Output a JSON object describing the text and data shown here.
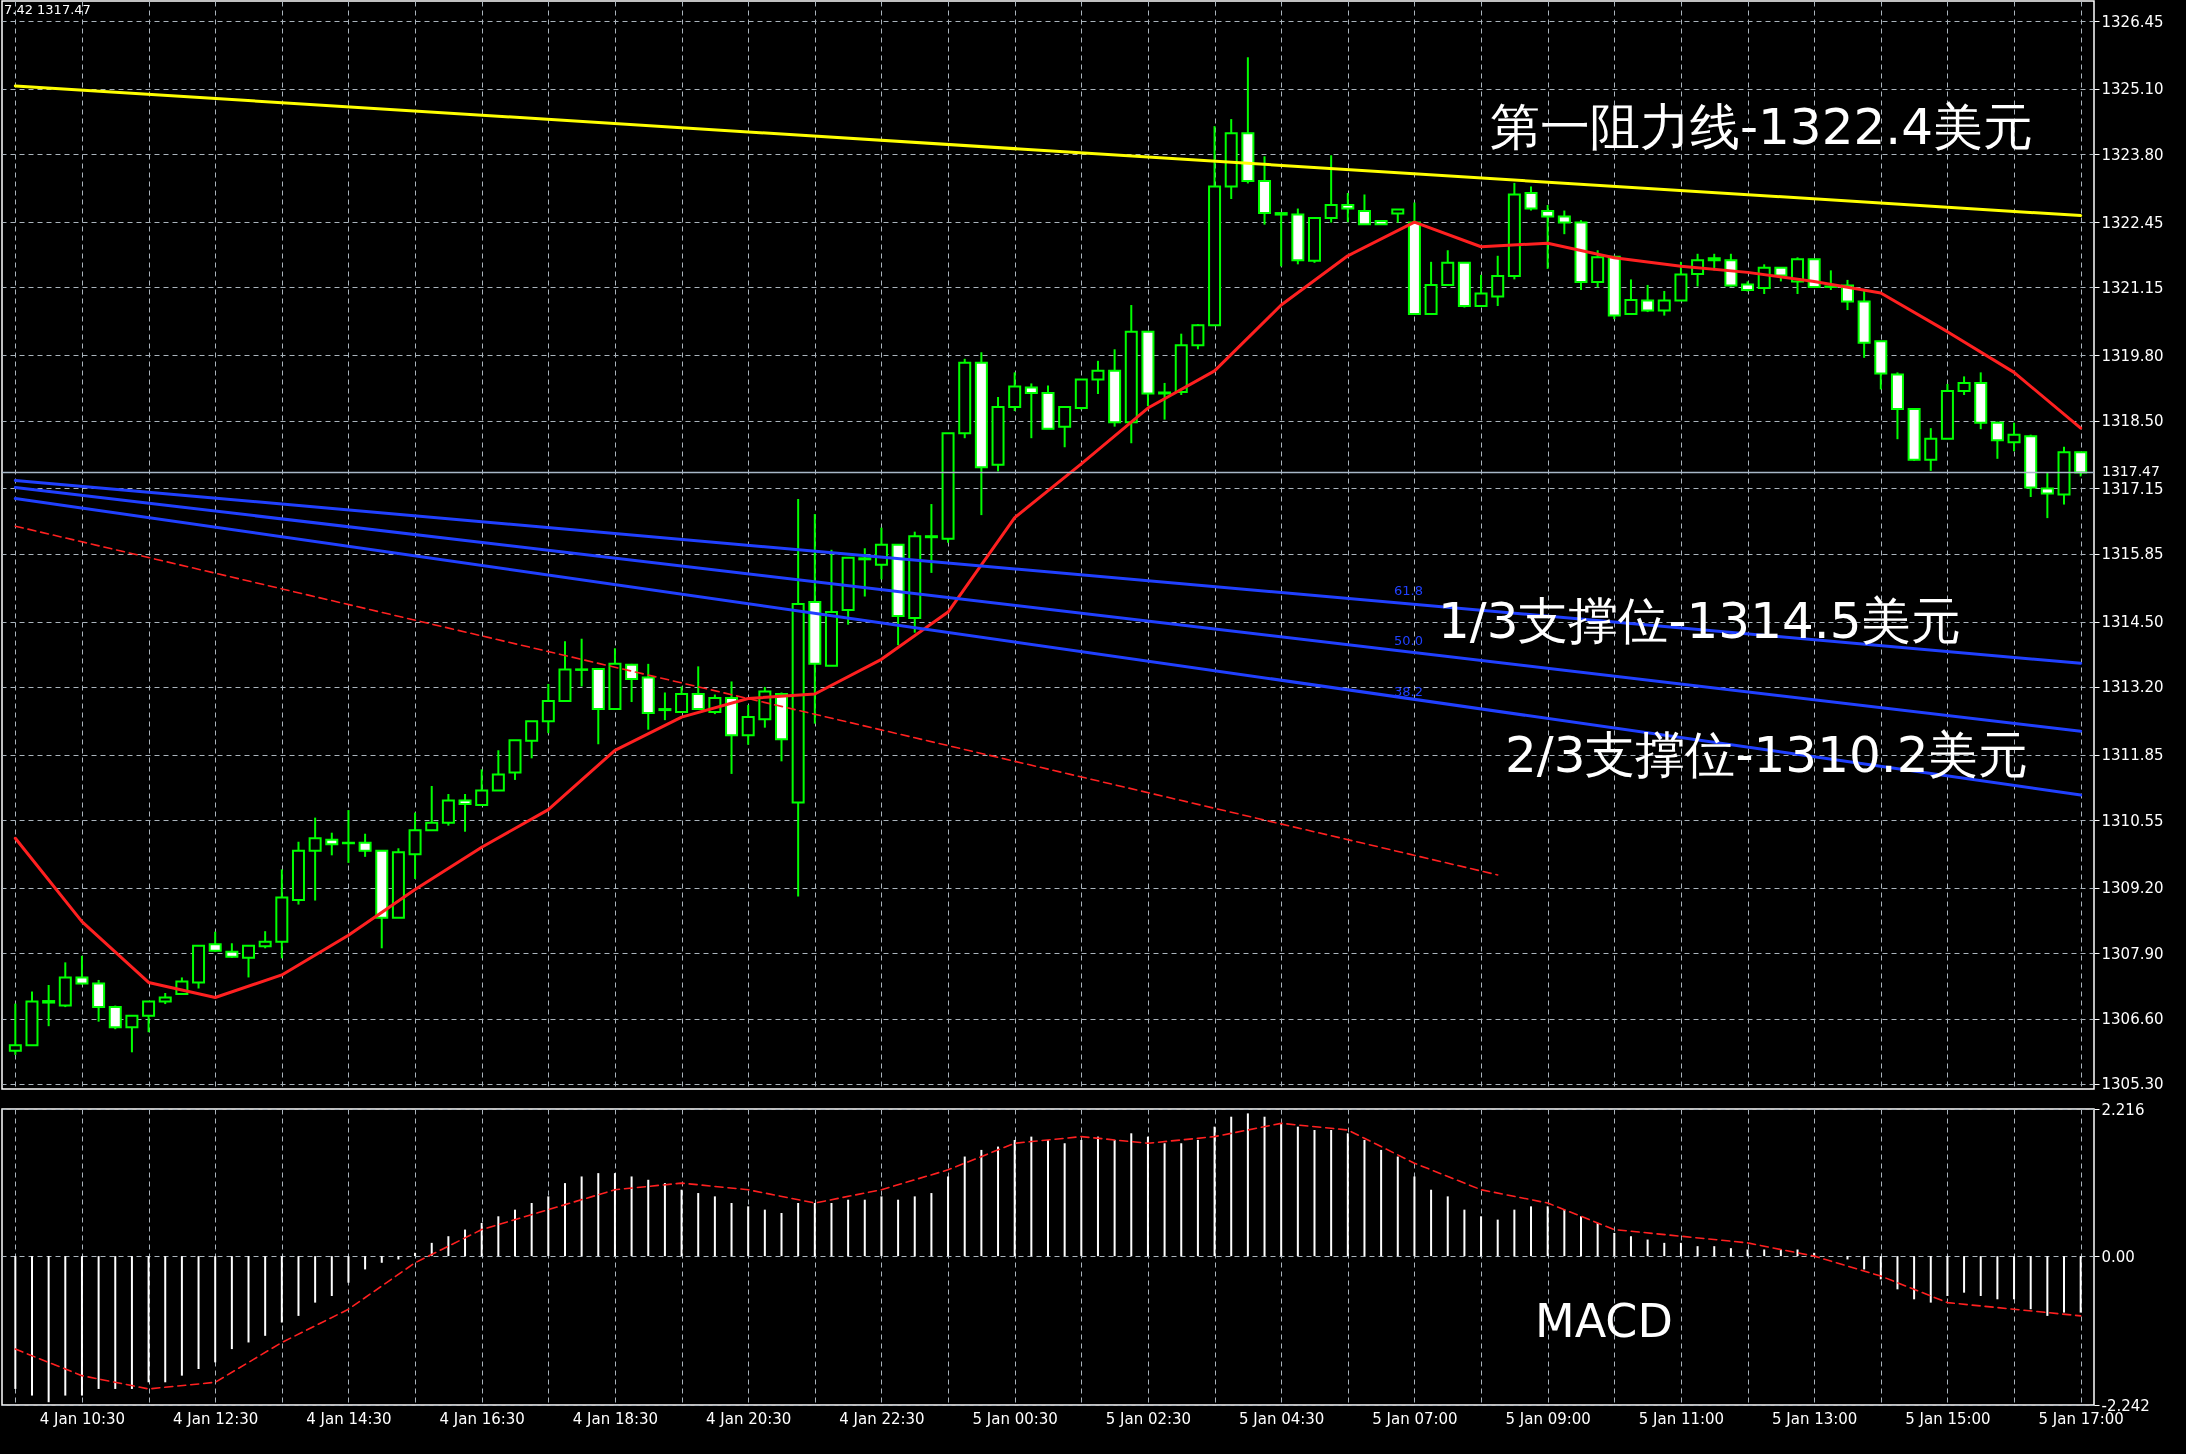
{
  "chart_data": [
    {
      "type": "candlestick",
      "color": "#00ff00",
      "grid": true,
      "tick_labels": "y",
      "categories": [
        null,
        null,
        null,
        null,
        null,
        null,
        null,
        null,
        null,
        null,
        null,
        null,
        null,
        null,
        null,
        null,
        null,
        null,
        null,
        null,
        null,
        null,
        null,
        null,
        null,
        null,
        null,
        null,
        null,
        null,
        null,
        null,
        null,
        null,
        null,
        null,
        null,
        null,
        null,
        null,
        null,
        null,
        null,
        null,
        null,
        null,
        null,
        null,
        null,
        null,
        null,
        null,
        null,
        null,
        null,
        null,
        null,
        null,
        null,
        null,
        null,
        null,
        null,
        null,
        null,
        null,
        null,
        null,
        null,
        null,
        null,
        null,
        null,
        null,
        null,
        null,
        null,
        null,
        null,
        null,
        null,
        null,
        null,
        null,
        null,
        null,
        null,
        null,
        null,
        null,
        null,
        null,
        null,
        null,
        null,
        null,
        null,
        null,
        null,
        null,
        null,
        null,
        null,
        null,
        null,
        null,
        null,
        null,
        null,
        null,
        null,
        null,
        null,
        null,
        null,
        null,
        null,
        null,
        null,
        null,
        null,
        null,
        null,
        null,
        null
      ],
      "ylim": [
        1305.2,
        1326.85
      ],
      "yticks": [
        {
          "value": 1305.3,
          "label": "1305.30"
        },
        {
          "value": 1306.6,
          "label": "1306.60"
        },
        {
          "value": 1307.9,
          "label": "1307.90"
        },
        {
          "value": 1309.2,
          "label": "1309.20"
        },
        1310.55,
        1311.85,
        {
          "value": 1313.2,
          "label": "1313.20"
        },
        {
          "value": 1314.5,
          "label": "1314.50"
        },
        1315.85,
        1317.15,
        {
          "value": 1318.5,
          "label": "1318.50"
        },
        {
          "value": 1319.8,
          "label": "1319.80"
        },
        1321.15,
        1322.45,
        {
          "value": 1323.8,
          "label": "1323.80"
        },
        {
          "value": 1325.1,
          "label": "1325.10"
        },
        1326.45
      ],
      "ohlc": [
        [
          1305.96,
          1306.9,
          1305.88,
          1306.07
        ],
        [
          1306.07,
          1307.14,
          1306.07,
          1306.94
        ],
        [
          1306.92,
          1307.27,
          1306.45,
          1306.95
        ],
        [
          1306.86,
          1307.72,
          1306.83,
          1307.42
        ],
        [
          1307.42,
          1307.85,
          1307.28,
          1307.3
        ],
        [
          1307.3,
          1307.37,
          1306.54,
          1306.83
        ],
        [
          1306.83,
          1306.86,
          1306.39,
          1306.43
        ],
        [
          1306.43,
          1306.66,
          1305.93,
          1306.66
        ],
        [
          1306.66,
          1306.94,
          1306.33,
          1306.94
        ],
        [
          1306.94,
          1307.11,
          1306.89,
          1307.02
        ],
        [
          1307.09,
          1307.42,
          1307.09,
          1307.34
        ],
        [
          1307.32,
          1308.05,
          1307.2,
          1308.05
        ],
        [
          1308.08,
          1308.33,
          1307.93,
          1307.95
        ],
        [
          1307.93,
          1308.1,
          1307.81,
          1307.83
        ],
        [
          1307.81,
          1308.05,
          1307.42,
          1308.05
        ],
        [
          1308.04,
          1308.34,
          1308.0,
          1308.13
        ],
        [
          1308.13,
          1309.57,
          1307.8,
          1309.01
        ],
        [
          1308.96,
          1310.12,
          1308.87,
          1309.94
        ],
        [
          1309.94,
          1310.6,
          1308.95,
          1310.19
        ],
        [
          1310.16,
          1310.3,
          1309.85,
          1310.07
        ],
        [
          1310.09,
          1310.75,
          1309.7,
          1310.1
        ],
        [
          1310.1,
          1310.28,
          1309.82,
          1309.94
        ],
        [
          1309.94,
          1309.94,
          1308.0,
          1308.61
        ],
        [
          1308.61,
          1309.99,
          1308.61,
          1309.91
        ],
        [
          1309.87,
          1310.7,
          1309.38,
          1310.35
        ],
        [
          1310.35,
          1311.23,
          1310.35,
          1310.5
        ],
        [
          1310.5,
          1311.07,
          1310.44,
          1310.94
        ],
        [
          1310.94,
          1311.07,
          1310.32,
          1310.87
        ],
        [
          1310.85,
          1311.56,
          1310.85,
          1311.14
        ],
        [
          1311.14,
          1311.94,
          1311.14,
          1311.46
        ],
        [
          1311.5,
          1312.14,
          1311.35,
          1312.14
        ],
        [
          1312.13,
          1312.52,
          1311.78,
          1312.52
        ],
        [
          1312.52,
          1313.26,
          1312.28,
          1312.92
        ],
        [
          1312.92,
          1314.11,
          1312.92,
          1313.55
        ],
        [
          1313.55,
          1314.16,
          1313.21,
          1313.54
        ],
        [
          1313.56,
          1313.56,
          1312.06,
          1312.76
        ],
        [
          1312.76,
          1313.97,
          1312.76,
          1313.66
        ],
        [
          1313.64,
          1313.66,
          1312.9,
          1313.36
        ],
        [
          1313.39,
          1313.66,
          1312.35,
          1312.68
        ],
        [
          1312.74,
          1313.09,
          1312.54,
          1312.76
        ],
        [
          1312.7,
          1313.21,
          1312.7,
          1313.06
        ],
        [
          1313.06,
          1313.61,
          1312.76,
          1312.76
        ],
        [
          1312.7,
          1313.05,
          1312.66,
          1312.98
        ],
        [
          1312.98,
          1313.31,
          1311.47,
          1312.24
        ],
        [
          1312.24,
          1312.84,
          1312.05,
          1312.6
        ],
        [
          1312.56,
          1313.2,
          1312.39,
          1313.11
        ],
        [
          1313.06,
          1313.09,
          1311.72,
          1312.16
        ],
        [
          1310.9,
          1316.94,
          1309.03,
          1314.85
        ],
        [
          1314.89,
          1316.64,
          1312.47,
          1313.66
        ],
        [
          1313.62,
          1315.93,
          1313.62,
          1314.69
        ],
        [
          1314.73,
          1315.77,
          1314.44,
          1315.77
        ],
        [
          1315.74,
          1315.96,
          1315.0,
          1315.76
        ],
        [
          1315.63,
          1316.37,
          1315.34,
          1316.03
        ],
        [
          1316.03,
          1316.03,
          1314.03,
          1314.61
        ],
        [
          1314.57,
          1316.29,
          1314.28,
          1316.2
        ],
        [
          1316.18,
          1316.84,
          1315.47,
          1316.2
        ],
        [
          1316.15,
          1318.25,
          1316.07,
          1318.25
        ],
        [
          1318.25,
          1319.73,
          1318.15,
          1319.65
        ],
        [
          1319.65,
          1319.86,
          1316.62,
          1317.57
        ],
        [
          1317.62,
          1318.97,
          1317.49,
          1318.77
        ],
        [
          1318.77,
          1319.46,
          1318.69,
          1319.18
        ],
        [
          1319.16,
          1319.24,
          1318.15,
          1319.05
        ],
        [
          1319.05,
          1319.2,
          1318.34,
          1318.34
        ],
        [
          1318.38,
          1318.77,
          1317.97,
          1318.77
        ],
        [
          1318.75,
          1319.32,
          1318.72,
          1319.32
        ],
        [
          1319.32,
          1319.69,
          1319.03,
          1319.49
        ],
        [
          1319.49,
          1319.92,
          1318.38,
          1318.47
        ],
        [
          1318.47,
          1320.8,
          1318.05,
          1320.27
        ],
        [
          1320.27,
          1320.27,
          1318.79,
          1319.04
        ],
        [
          1319.04,
          1319.25,
          1318.52,
          1319.06
        ],
        [
          1319.07,
          1320.23,
          1319.01,
          1320.0
        ],
        [
          1320.0,
          1320.42,
          1319.92,
          1320.4
        ],
        [
          1320.4,
          1324.36,
          1320.4,
          1323.16
        ],
        [
          1323.16,
          1324.5,
          1322.91,
          1324.22
        ],
        [
          1324.22,
          1325.73,
          1323.22,
          1323.27
        ],
        [
          1323.27,
          1323.76,
          1322.4,
          1322.63
        ],
        [
          1322.63,
          1322.63,
          1321.57,
          1322.6
        ],
        [
          1322.6,
          1322.72,
          1321.61,
          1321.69
        ],
        [
          1321.68,
          1322.53,
          1321.64,
          1322.53
        ],
        [
          1322.53,
          1323.78,
          1322.44,
          1322.79
        ],
        [
          1322.79,
          1323.03,
          1322.45,
          1322.72
        ],
        [
          1322.67,
          1323.0,
          1322.4,
          1322.41
        ],
        [
          1322.47,
          1322.49,
          1322.4,
          1322.41
        ],
        [
          1322.62,
          1322.7,
          1322.44,
          1322.7
        ],
        [
          1322.44,
          1322.84,
          1320.62,
          1320.62
        ],
        [
          1320.62,
          1321.66,
          1320.62,
          1321.2
        ],
        [
          1321.2,
          1321.89,
          1321.2,
          1321.64
        ],
        [
          1321.64,
          1321.64,
          1320.75,
          1320.78
        ],
        [
          1320.78,
          1321.4,
          1320.78,
          1321.03
        ],
        [
          1320.97,
          1321.78,
          1320.78,
          1321.38
        ],
        [
          1321.38,
          1323.23,
          1321.31,
          1323.0
        ],
        [
          1323.03,
          1323.16,
          1322.68,
          1322.72
        ],
        [
          1322.67,
          1322.79,
          1321.52,
          1322.56
        ],
        [
          1322.56,
          1322.68,
          1322.21,
          1322.44
        ],
        [
          1322.44,
          1322.49,
          1321.1,
          1321.26
        ],
        [
          1321.26,
          1321.89,
          1321.15,
          1321.75
        ],
        [
          1321.76,
          1321.78,
          1320.52,
          1320.59
        ],
        [
          1320.62,
          1321.31,
          1320.62,
          1320.9
        ],
        [
          1320.89,
          1321.2,
          1320.66,
          1320.69
        ],
        [
          1320.69,
          1321.08,
          1320.59,
          1320.89
        ],
        [
          1320.89,
          1321.66,
          1320.89,
          1321.41
        ],
        [
          1321.42,
          1321.82,
          1321.17,
          1321.69
        ],
        [
          1321.69,
          1321.82,
          1321.49,
          1321.73
        ],
        [
          1321.69,
          1321.82,
          1321.17,
          1321.19
        ],
        [
          1321.21,
          1321.27,
          1321.07,
          1321.1
        ],
        [
          1321.14,
          1321.61,
          1321.02,
          1321.54
        ],
        [
          1321.54,
          1321.54,
          1321.27,
          1321.39
        ],
        [
          1321.27,
          1321.75,
          1321.02,
          1321.71
        ],
        [
          1321.71,
          1321.71,
          1321.14,
          1321.16
        ],
        [
          1321.16,
          1321.49,
          1321.1,
          1321.17
        ],
        [
          1321.19,
          1321.3,
          1320.7,
          1320.87
        ],
        [
          1320.87,
          1321.08,
          1319.75,
          1320.05
        ],
        [
          1320.08,
          1320.08,
          1319.12,
          1319.44
        ],
        [
          1319.42,
          1319.46,
          1318.13,
          1318.73
        ],
        [
          1318.73,
          1318.73,
          1317.7,
          1317.72
        ],
        [
          1317.72,
          1318.35,
          1317.5,
          1318.14
        ],
        [
          1318.14,
          1319.23,
          1318.14,
          1319.09
        ],
        [
          1319.09,
          1319.38,
          1319.01,
          1319.25
        ],
        [
          1319.25,
          1319.46,
          1318.33,
          1318.46
        ],
        [
          1318.46,
          1318.48,
          1317.74,
          1318.11
        ],
        [
          1318.07,
          1318.46,
          1317.89,
          1318.22
        ],
        [
          1318.19,
          1318.22,
          1316.98,
          1317.17
        ],
        [
          1317.15,
          1317.46,
          1316.56,
          1317.05
        ],
        [
          1317.03,
          1317.98,
          1316.83,
          1317.87
        ],
        [
          1317.87,
          1317.87,
          1317.39,
          1317.47
        ]
      ],
      "series": [
        {
          "type": "line",
          "color": "#ff2020",
          "values": [
            1310.19,
            null,
            null,
            null,
            1308.53,
            null,
            null,
            null,
            1307.32,
            null,
            null,
            null,
            1307.02,
            null,
            null,
            null,
            1307.47,
            null,
            null,
            null,
            1308.26,
            null,
            null,
            null,
            1309.17,
            null,
            null,
            null,
            1310.01,
            null,
            null,
            null,
            1310.76,
            null,
            null,
            null,
            1311.94,
            null,
            null,
            null,
            1312.6,
            null,
            null,
            null,
            1312.97,
            null,
            null,
            null,
            1313.06,
            null,
            null,
            null,
            1313.75,
            null,
            null,
            null,
            1314.69,
            null,
            null,
            null,
            1316.57,
            null,
            null,
            null,
            1317.64,
            null,
            null,
            null,
            1318.75,
            null,
            null,
            null,
            1319.49,
            null,
            null,
            null,
            1320.8,
            null,
            null,
            null,
            1321.78,
            null,
            null,
            null,
            1322.45,
            null,
            null,
            null,
            1321.96,
            null,
            null,
            null,
            1322.03,
            null,
            null,
            null,
            1321.74,
            null,
            null,
            null,
            1321.57,
            null,
            null,
            null,
            1321.45,
            null,
            null,
            null,
            1321.27,
            null,
            null,
            null,
            1321.04,
            null,
            null,
            null,
            1320.27,
            null,
            null,
            null,
            1319.46,
            null,
            null,
            null,
            1318.35
          ]
        },
        {
          "type": "line",
          "color": "#ffff00",
          "values": [
            1325.16,
            null,
            null,
            null,
            null,
            null,
            null,
            null,
            null,
            null,
            null,
            null,
            null,
            null,
            null,
            null,
            null,
            null,
            null,
            null,
            null,
            null,
            null,
            null,
            null,
            null,
            null,
            null,
            null,
            null,
            null,
            null,
            null,
            null,
            null,
            null,
            null,
            null,
            null,
            null,
            null,
            null,
            null,
            null,
            null,
            null,
            null,
            null,
            null,
            null,
            null,
            null,
            null,
            null,
            null,
            null,
            null,
            null,
            null,
            null,
            null,
            null,
            null,
            null,
            null,
            null,
            null,
            null,
            null,
            null,
            null,
            null,
            null,
            null,
            null,
            null,
            null,
            null,
            null,
            null,
            null,
            null,
            null,
            null,
            null,
            null,
            null,
            null,
            null,
            null,
            null,
            null,
            null,
            null,
            null,
            null,
            null,
            null,
            null,
            null,
            null,
            null,
            null,
            null,
            null,
            null,
            null,
            null,
            null,
            null,
            null,
            null,
            null,
            null,
            null,
            null,
            null,
            null,
            null,
            null,
            null,
            null,
            null,
            null,
            1322.58
          ]
        },
        {
          "type": "line",
          "name": "61.8",
          "color": "#2040ff",
          "values": [
            1317.31,
            null,
            null,
            null,
            null,
            null,
            null,
            null,
            null,
            null,
            null,
            null,
            null,
            null,
            null,
            null,
            null,
            null,
            null,
            null,
            null,
            null,
            null,
            null,
            null,
            null,
            null,
            null,
            null,
            null,
            null,
            null,
            null,
            null,
            null,
            null,
            null,
            null,
            null,
            null,
            null,
            null,
            null,
            null,
            null,
            null,
            null,
            null,
            null,
            null,
            null,
            null,
            null,
            null,
            null,
            null,
            null,
            null,
            null,
            null,
            null,
            null,
            null,
            null,
            null,
            null,
            null,
            null,
            null,
            null,
            null,
            null,
            null,
            null,
            null,
            null,
            null,
            null,
            null,
            null,
            null,
            null,
            null,
            null,
            null,
            null,
            null,
            null,
            null,
            null,
            null,
            null,
            null,
            null,
            null,
            null,
            null,
            null,
            null,
            null,
            null,
            null,
            null,
            null,
            null,
            null,
            null,
            null,
            null,
            null,
            null,
            null,
            null,
            null,
            null,
            null,
            null,
            null,
            null,
            null,
            null,
            null,
            null,
            null,
            1313.67
          ]
        },
        {
          "type": "line",
          "name": "50.0",
          "color": "#2040ff",
          "values": [
            1317.17,
            null,
            null,
            null,
            null,
            null,
            null,
            null,
            null,
            null,
            null,
            null,
            null,
            null,
            null,
            null,
            null,
            null,
            null,
            null,
            null,
            null,
            null,
            null,
            null,
            null,
            null,
            null,
            null,
            null,
            null,
            null,
            null,
            null,
            null,
            null,
            null,
            null,
            null,
            null,
            null,
            null,
            null,
            null,
            null,
            null,
            null,
            null,
            null,
            null,
            null,
            null,
            null,
            null,
            null,
            null,
            null,
            null,
            null,
            null,
            null,
            null,
            null,
            null,
            null,
            null,
            null,
            null,
            null,
            null,
            null,
            null,
            null,
            null,
            null,
            null,
            null,
            null,
            null,
            null,
            null,
            null,
            null,
            null,
            null,
            null,
            null,
            null,
            null,
            null,
            null,
            null,
            null,
            null,
            null,
            null,
            null,
            null,
            null,
            null,
            null,
            null,
            null,
            null,
            null,
            null,
            null,
            null,
            null,
            null,
            null,
            null,
            null,
            null,
            null,
            null,
            null,
            null,
            null,
            null,
            null,
            null,
            null,
            null,
            1312.32
          ]
        },
        {
          "type": "line",
          "name": "38.2",
          "color": "#2040ff",
          "values": [
            1316.95,
            null,
            null,
            null,
            null,
            null,
            null,
            null,
            null,
            null,
            null,
            null,
            null,
            null,
            null,
            null,
            null,
            null,
            null,
            null,
            null,
            null,
            null,
            null,
            null,
            null,
            null,
            null,
            null,
            null,
            null,
            null,
            null,
            null,
            null,
            null,
            null,
            null,
            null,
            null,
            null,
            null,
            null,
            null,
            null,
            null,
            null,
            null,
            null,
            null,
            null,
            null,
            null,
            null,
            null,
            null,
            null,
            null,
            null,
            null,
            null,
            null,
            null,
            null,
            null,
            null,
            null,
            null,
            null,
            null,
            null,
            null,
            null,
            null,
            null,
            null,
            null,
            null,
            null,
            null,
            null,
            null,
            null,
            null,
            null,
            null,
            null,
            null,
            null,
            null,
            null,
            null,
            null,
            null,
            null,
            null,
            null,
            null,
            null,
            null,
            null,
            null,
            null,
            null,
            null,
            null,
            null,
            null,
            null,
            null,
            null,
            null,
            null,
            null,
            null,
            null,
            null,
            null,
            null,
            null,
            null,
            null,
            null,
            null,
            1311.05
          ]
        },
        {
          "type": "line",
          "color": "#ff2020",
          "line_style": "dashed",
          "values": [
            1316.4,
            null,
            null,
            null,
            null,
            null,
            null,
            null,
            null,
            null,
            null,
            null,
            null,
            null,
            null,
            null,
            null,
            null,
            null,
            null,
            null,
            null,
            null,
            null,
            null,
            null,
            null,
            null,
            null,
            null,
            null,
            null,
            null,
            null,
            null,
            null,
            null,
            null,
            null,
            null,
            null,
            null,
            null,
            null,
            null,
            null,
            null,
            null,
            null,
            null,
            null,
            null,
            null,
            null,
            null,
            null,
            null,
            null,
            null,
            null,
            null,
            null,
            null,
            null,
            null,
            null,
            null,
            null,
            null,
            null,
            null,
            null,
            null,
            null,
            null,
            null,
            null,
            null,
            null,
            null,
            null,
            null,
            null,
            null,
            null,
            null,
            null,
            null,
            null,
            1309.46,
            null,
            null,
            null,
            null,
            null,
            null,
            null,
            null,
            null,
            null,
            null,
            null,
            null,
            null,
            null,
            null,
            null,
            null,
            null,
            null,
            null,
            null,
            null,
            null,
            null,
            null,
            null,
            null,
            null,
            null,
            null,
            null,
            null,
            null,
            null
          ]
        }
      ],
      "ref_lines": [
        {
          "axis": "y",
          "value": 1317.47,
          "label": "1317.47",
          "color": "#a8b8c8"
        }
      ],
      "annotations": [
        "7.42 1317.47",
        "第一阻力线-1322.4美元",
        "1/3支撑位-1314.5美元",
        "2/3支撑位-1310.2美元"
      ]
    },
    {
      "type": "bar",
      "grid": true,
      "categories": [
        null,
        null,
        null,
        null,
        "4 Jan 10:30",
        null,
        null,
        null,
        null,
        null,
        null,
        null,
        "4 Jan 12:30",
        null,
        null,
        null,
        null,
        null,
        null,
        null,
        "4 Jan 14:30",
        null,
        null,
        null,
        null,
        null,
        null,
        null,
        "4 Jan 16:30",
        null,
        null,
        null,
        null,
        null,
        null,
        null,
        "4 Jan 18:30",
        null,
        null,
        null,
        null,
        null,
        null,
        null,
        "4 Jan 20:30",
        null,
        null,
        null,
        null,
        null,
        null,
        null,
        "4 Jan 22:30",
        null,
        null,
        null,
        null,
        null,
        null,
        null,
        "5 Jan 00:30",
        null,
        null,
        null,
        null,
        null,
        null,
        null,
        "5 Jan 02:30",
        null,
        null,
        null,
        null,
        null,
        null,
        null,
        "5 Jan 04:30",
        null,
        null,
        null,
        null,
        null,
        null,
        null,
        "5 Jan 07:00",
        null,
        null,
        null,
        null,
        null,
        null,
        null,
        "5 Jan 09:00",
        null,
        null,
        null,
        null,
        null,
        null,
        null,
        "5 Jan 11:00",
        null,
        null,
        null,
        null,
        null,
        null,
        null,
        "5 Jan 13:00",
        null,
        null,
        null,
        null,
        null,
        null,
        null,
        "5 Jan 15:00",
        null,
        null,
        null,
        null,
        null,
        null,
        null,
        "5 Jan 17:00"
      ],
      "ylim": [
        -2.242,
        2.216
      ],
      "yticks": [
        -2.242,
        {
          "value": 0,
          "label": "0.00"
        },
        2.216
      ],
      "series": [
        {
          "type": "bar",
          "color": "#ffffff",
          "values": [
            -2.0,
            -2.1,
            -2.2,
            -2.1,
            -2.1,
            -2.0,
            -2.0,
            -2.0,
            -1.9,
            -1.9,
            -1.8,
            -1.7,
            -1.6,
            -1.4,
            -1.3,
            -1.2,
            -1.0,
            -0.9,
            -0.7,
            -0.6,
            -0.4,
            -0.2,
            -0.1,
            -0.05,
            0.05,
            0.2,
            0.3,
            0.4,
            0.5,
            0.6,
            0.7,
            0.8,
            0.9,
            1.1,
            1.2,
            1.25,
            1.25,
            1.2,
            1.15,
            1.1,
            1.0,
            0.95,
            0.9,
            0.8,
            0.75,
            0.7,
            0.65,
            0.8,
            0.8,
            0.8,
            0.85,
            0.85,
            0.9,
            0.85,
            0.9,
            0.95,
            1.2,
            1.5,
            1.6,
            1.65,
            1.75,
            1.8,
            1.75,
            1.7,
            1.75,
            1.8,
            1.75,
            1.85,
            1.8,
            1.7,
            1.7,
            1.75,
            1.95,
            2.1,
            2.15,
            2.1,
            2.0,
            1.95,
            1.9,
            1.9,
            1.85,
            1.75,
            1.6,
            1.5,
            1.2,
            1.0,
            0.9,
            0.7,
            0.6,
            0.55,
            0.7,
            0.75,
            0.75,
            0.7,
            0.6,
            0.5,
            0.35,
            0.3,
            0.25,
            0.2,
            0.2,
            0.15,
            0.15,
            0.12,
            0.1,
            0.1,
            0.1,
            0.1,
            0.05,
            0.0,
            -0.05,
            -0.2,
            -0.35,
            -0.5,
            -0.65,
            -0.7,
            -0.6,
            -0.55,
            -0.6,
            -0.65,
            -0.65,
            -0.8,
            -0.9,
            -0.85,
            -0.85
          ]
        },
        {
          "type": "line",
          "color": "#ff2020",
          "line_style": "dashed",
          "values": [
            -1.4,
            null,
            null,
            null,
            -1.8,
            null,
            null,
            null,
            -2.0,
            null,
            null,
            null,
            -1.9,
            null,
            null,
            null,
            -1.3,
            null,
            null,
            null,
            -0.8,
            null,
            null,
            null,
            -0.1,
            null,
            null,
            null,
            0.4,
            null,
            null,
            null,
            0.7,
            null,
            null,
            null,
            1.0,
            null,
            null,
            null,
            1.1,
            null,
            null,
            null,
            1.0,
            null,
            null,
            null,
            0.8,
            null,
            null,
            null,
            1.0,
            null,
            null,
            null,
            1.3,
            null,
            null,
            null,
            1.7,
            null,
            null,
            null,
            1.8,
            null,
            null,
            null,
            1.7,
            null,
            null,
            null,
            1.8,
            null,
            null,
            null,
            2.0,
            null,
            null,
            null,
            1.9,
            null,
            null,
            null,
            1.4,
            null,
            null,
            null,
            1.0,
            null,
            null,
            null,
            0.8,
            null,
            null,
            null,
            0.4,
            null,
            null,
            null,
            0.3,
            null,
            null,
            null,
            0.2,
            null,
            null,
            null,
            0.0,
            null,
            null,
            null,
            -0.3,
            null,
            null,
            null,
            -0.7,
            null,
            null,
            null,
            -0.8,
            null,
            null,
            null,
            -0.9
          ]
        }
      ],
      "annotations": [
        "MACD"
      ]
    }
  ]
}
